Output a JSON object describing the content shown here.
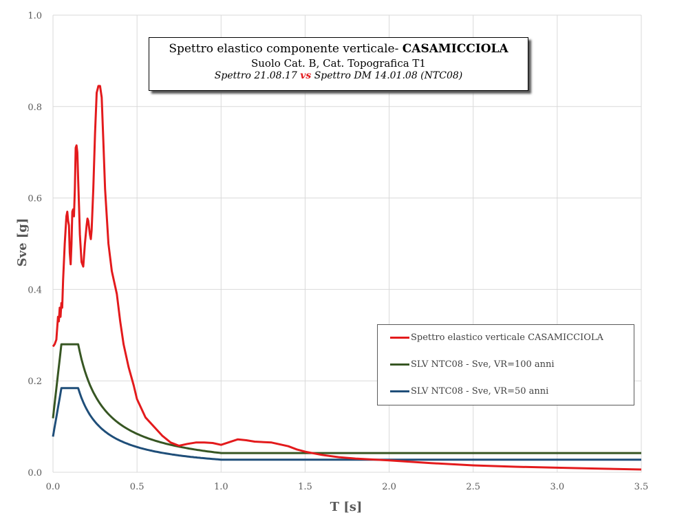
{
  "chart_data": {
    "type": "line",
    "title_main": "Spettro elastico componente verticale- ",
    "title_bold": "CASAMICCIOLA",
    "subtitle": "Suolo Cat. B, Cat. Topografica T1",
    "subtitle2_a": "Spettro 21.08.17 ",
    "subtitle2_vs": "vs",
    "subtitle2_b": " Spettro DM 14.01.08 (NTC08)",
    "xlabel": "T [s]",
    "ylabel": "Sve  [g]",
    "xlim": [
      0,
      3.5
    ],
    "ylim": [
      0,
      1.0
    ],
    "x_ticks": [
      "0.0",
      "0.5",
      "1.0",
      "1.5",
      "2.0",
      "2.5",
      "3.0",
      "3.5"
    ],
    "y_ticks": [
      "0.0",
      "0.2",
      "0.4",
      "0.6",
      "0.8",
      "1.0"
    ],
    "grid": true,
    "legend_position": "bottom-right",
    "series": [
      {
        "name": "Spettro elastico verticale CASAMICCIOLA",
        "color": "#e31a1c",
        "points": [
          [
            0,
            0.275
          ],
          [
            0.01,
            0.28
          ],
          [
            0.02,
            0.29
          ],
          [
            0.03,
            0.34
          ],
          [
            0.035,
            0.33
          ],
          [
            0.04,
            0.36
          ],
          [
            0.045,
            0.34
          ],
          [
            0.05,
            0.37
          ],
          [
            0.055,
            0.36
          ],
          [
            0.06,
            0.42
          ],
          [
            0.07,
            0.5
          ],
          [
            0.08,
            0.56
          ],
          [
            0.085,
            0.57
          ],
          [
            0.09,
            0.55
          ],
          [
            0.095,
            0.54
          ],
          [
            0.1,
            0.48
          ],
          [
            0.105,
            0.455
          ],
          [
            0.11,
            0.5
          ],
          [
            0.115,
            0.57
          ],
          [
            0.12,
            0.575
          ],
          [
            0.125,
            0.56
          ],
          [
            0.13,
            0.62
          ],
          [
            0.135,
            0.71
          ],
          [
            0.14,
            0.715
          ],
          [
            0.145,
            0.7
          ],
          [
            0.15,
            0.64
          ],
          [
            0.155,
            0.58
          ],
          [
            0.16,
            0.52
          ],
          [
            0.17,
            0.46
          ],
          [
            0.18,
            0.45
          ],
          [
            0.19,
            0.5
          ],
          [
            0.2,
            0.54
          ],
          [
            0.205,
            0.555
          ],
          [
            0.21,
            0.55
          ],
          [
            0.22,
            0.52
          ],
          [
            0.225,
            0.51
          ],
          [
            0.23,
            0.53
          ],
          [
            0.24,
            0.62
          ],
          [
            0.25,
            0.74
          ],
          [
            0.26,
            0.83
          ],
          [
            0.27,
            0.845
          ],
          [
            0.28,
            0.845
          ],
          [
            0.29,
            0.82
          ],
          [
            0.3,
            0.72
          ],
          [
            0.31,
            0.62
          ],
          [
            0.33,
            0.5
          ],
          [
            0.35,
            0.44
          ],
          [
            0.38,
            0.39
          ],
          [
            0.4,
            0.33
          ],
          [
            0.42,
            0.28
          ],
          [
            0.45,
            0.23
          ],
          [
            0.48,
            0.19
          ],
          [
            0.5,
            0.16
          ],
          [
            0.55,
            0.12
          ],
          [
            0.6,
            0.1
          ],
          [
            0.65,
            0.08
          ],
          [
            0.7,
            0.065
          ],
          [
            0.75,
            0.058
          ],
          [
            0.8,
            0.062
          ],
          [
            0.85,
            0.065
          ],
          [
            0.9,
            0.065
          ],
          [
            0.95,
            0.064
          ],
          [
            1.0,
            0.06
          ],
          [
            1.05,
            0.066
          ],
          [
            1.1,
            0.072
          ],
          [
            1.15,
            0.07
          ],
          [
            1.2,
            0.067
          ],
          [
            1.3,
            0.065
          ],
          [
            1.4,
            0.057
          ],
          [
            1.45,
            0.05
          ],
          [
            1.5,
            0.045
          ],
          [
            1.6,
            0.038
          ],
          [
            1.7,
            0.033
          ],
          [
            1.8,
            0.03
          ],
          [
            2.0,
            0.026
          ],
          [
            2.25,
            0.02
          ],
          [
            2.5,
            0.015
          ],
          [
            2.75,
            0.012
          ],
          [
            3.0,
            0.01
          ],
          [
            3.25,
            0.008
          ],
          [
            3.5,
            0.006
          ]
        ]
      },
      {
        "name": "SLV NTC08 - Sve, VR=100 anni",
        "color": "#375623",
        "model": {
          "ag_F": 0.28,
          "start": 0.118,
          "TB": 0.05,
          "TC": 0.15,
          "TD": 1.0
        }
      },
      {
        "name": "SLV NTC08 - Sve, VR=50 anni",
        "color": "#1f4e79",
        "model": {
          "ag_F": 0.184,
          "start": 0.078,
          "TB": 0.05,
          "TC": 0.15,
          "TD": 1.0
        }
      }
    ]
  }
}
